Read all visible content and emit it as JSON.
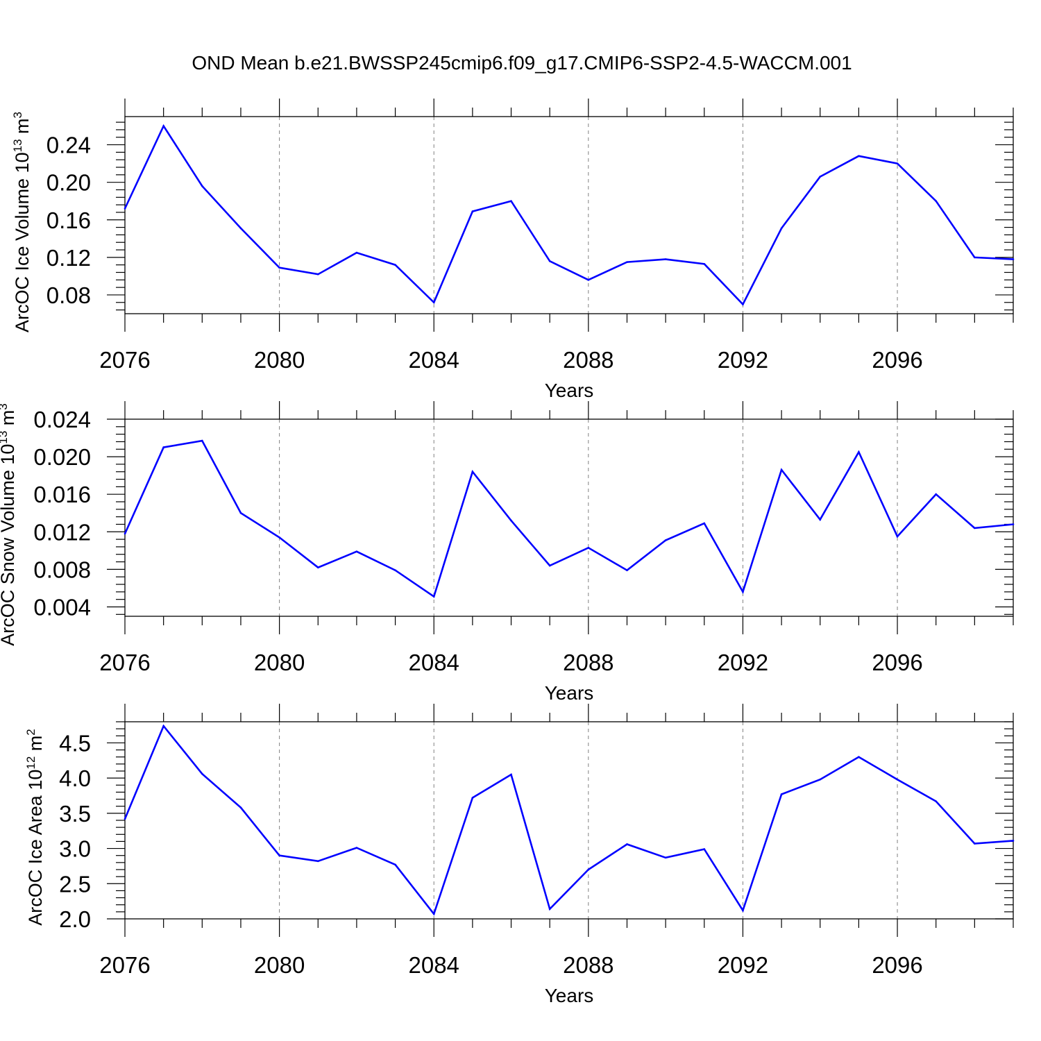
{
  "figure": {
    "title": "OND Mean b.e21.BWSSP245cmip6.f09_g17.CMIP6-SSP2-4.5-WACCM.001"
  },
  "colors": {
    "line": "#0000ff",
    "axes": "#000000",
    "grid": "#808080",
    "background": "#ffffff"
  },
  "chart_data": [
    {
      "type": "line",
      "title": "",
      "xlabel": "Years",
      "ylabel_main": "ArcOC Ice Volume 10",
      "ylabel_exp": "13",
      "ylabel_unit": " m",
      "ylabel_unit_exp": "3",
      "xlim": [
        2076,
        2099
      ],
      "ylim": [
        0.06,
        0.27
      ],
      "xticks": [
        2076,
        2080,
        2084,
        2088,
        2092,
        2096
      ],
      "xtick_labels": [
        "2076",
        "2080",
        "2084",
        "2088",
        "2092",
        "2096"
      ],
      "yticks": [
        0.08,
        0.12,
        0.16,
        0.2,
        0.24
      ],
      "ytick_labels": [
        "0.08",
        "0.12",
        "0.16",
        "0.20",
        "0.24"
      ],
      "grid": "vertical dashed at major x ticks",
      "series": [
        {
          "name": "ArcOC Ice Volume",
          "x": [
            2076,
            2077,
            2078,
            2079,
            2080,
            2081,
            2082,
            2083,
            2084,
            2085,
            2086,
            2087,
            2088,
            2089,
            2090,
            2091,
            2092,
            2093,
            2094,
            2095,
            2096,
            2097,
            2098,
            2099
          ],
          "values": [
            0.172,
            0.26,
            0.196,
            0.151,
            0.109,
            0.102,
            0.125,
            0.112,
            0.072,
            0.169,
            0.18,
            0.116,
            0.096,
            0.115,
            0.118,
            0.113,
            0.07,
            0.151,
            0.206,
            0.228,
            0.22,
            0.18,
            0.12,
            0.118
          ]
        }
      ]
    },
    {
      "type": "line",
      "title": "",
      "xlabel": "Years",
      "ylabel_main": "ArcOC Snow Volume 10",
      "ylabel_exp": "13",
      "ylabel_unit": " m",
      "ylabel_unit_exp": "3",
      "xlim": [
        2076,
        2099
      ],
      "ylim": [
        0.003,
        0.024
      ],
      "xticks": [
        2076,
        2080,
        2084,
        2088,
        2092,
        2096
      ],
      "xtick_labels": [
        "2076",
        "2080",
        "2084",
        "2088",
        "2092",
        "2096"
      ],
      "yticks": [
        0.004,
        0.008,
        0.012,
        0.016,
        0.02,
        0.024
      ],
      "ytick_labels": [
        "0.004",
        "0.008",
        "0.012",
        "0.016",
        "0.020",
        "0.024"
      ],
      "grid": "vertical dashed at major x ticks",
      "series": [
        {
          "name": "ArcOC Snow Volume",
          "x": [
            2076,
            2077,
            2078,
            2079,
            2080,
            2081,
            2082,
            2083,
            2084,
            2085,
            2086,
            2087,
            2088,
            2089,
            2090,
            2091,
            2092,
            2093,
            2094,
            2095,
            2096,
            2097,
            2098,
            2099
          ],
          "values": [
            0.0118,
            0.021,
            0.0217,
            0.014,
            0.0114,
            0.0082,
            0.0099,
            0.0079,
            0.0051,
            0.0184,
            0.0132,
            0.0084,
            0.0103,
            0.0079,
            0.0111,
            0.0129,
            0.0056,
            0.0186,
            0.0133,
            0.0205,
            0.0115,
            0.016,
            0.0124,
            0.0128
          ]
        }
      ]
    },
    {
      "type": "line",
      "title": "",
      "xlabel": "Years",
      "ylabel_main": "ArcOC Ice Area 10",
      "ylabel_exp": "12",
      "ylabel_unit": " m",
      "ylabel_unit_exp": "2",
      "xlim": [
        2076,
        2099
      ],
      "ylim": [
        2.0,
        4.8
      ],
      "xticks": [
        2076,
        2080,
        2084,
        2088,
        2092,
        2096
      ],
      "xtick_labels": [
        "2076",
        "2080",
        "2084",
        "2088",
        "2092",
        "2096"
      ],
      "yticks": [
        2.0,
        2.5,
        3.0,
        3.5,
        4.0,
        4.5
      ],
      "ytick_labels": [
        "2.0",
        "2.5",
        "3.0",
        "3.5",
        "4.0",
        "4.5"
      ],
      "grid": "vertical dashed at major x ticks",
      "series": [
        {
          "name": "ArcOC Ice Area",
          "x": [
            2076,
            2077,
            2078,
            2079,
            2080,
            2081,
            2082,
            2083,
            2084,
            2085,
            2086,
            2087,
            2088,
            2089,
            2090,
            2091,
            2092,
            2093,
            2094,
            2095,
            2096,
            2097,
            2098,
            2099
          ],
          "values": [
            3.42,
            4.74,
            4.06,
            3.58,
            2.9,
            2.82,
            3.01,
            2.77,
            2.07,
            3.72,
            4.05,
            2.14,
            2.7,
            3.06,
            2.87,
            2.99,
            2.12,
            3.77,
            3.98,
            4.3,
            3.98,
            3.67,
            3.07,
            3.11
          ]
        }
      ]
    }
  ]
}
